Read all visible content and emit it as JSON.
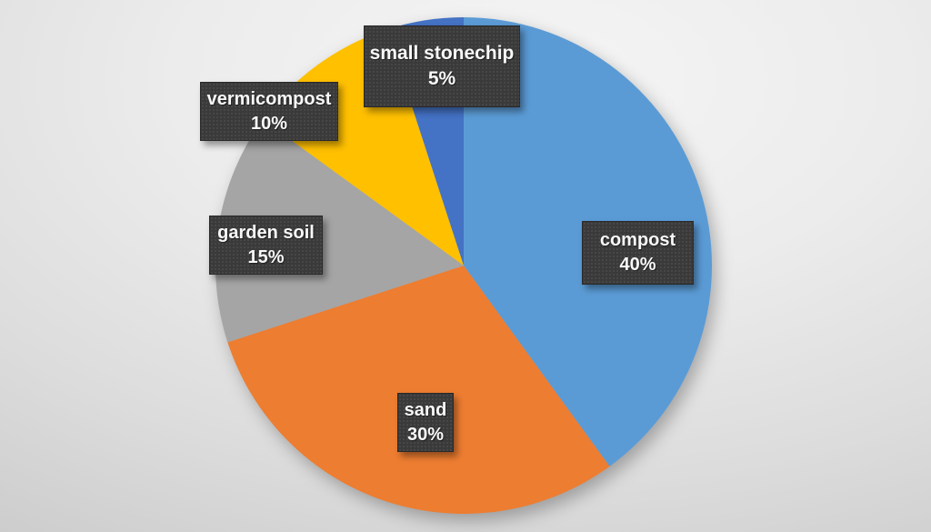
{
  "chart_data": {
    "type": "pie",
    "title": "",
    "categories": [
      "compost",
      "sand",
      "garden soil",
      "vermicompost",
      "small stonechip"
    ],
    "values": [
      40,
      30,
      15,
      10,
      5
    ],
    "unit": "%",
    "colors": [
      "#5B9BD5",
      "#ED7D31",
      "#A5A5A5",
      "#FFC000",
      "#4472C4"
    ],
    "start_angle_deg": 0,
    "direction": "clockwise",
    "legend_position": "none",
    "data_labels": [
      {
        "label": "compost",
        "value_text": "40%"
      },
      {
        "label": "sand",
        "value_text": "30%"
      },
      {
        "label": "garden soil",
        "value_text": "15%"
      },
      {
        "label": "vermicompost",
        "value_text": "10%"
      },
      {
        "label": "small stonechip",
        "value_text": "5%"
      }
    ]
  },
  "style": {
    "label_box_color": "#3A3A3A",
    "label_text_color": "#FFFFFF",
    "background_center_color": "#F5F5F5",
    "background_edge_color": "#C2C2C2"
  }
}
